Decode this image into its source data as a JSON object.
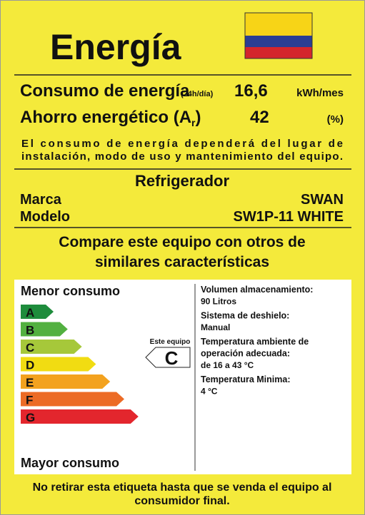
{
  "header": {
    "title": "Energía"
  },
  "consumption": {
    "label": "Consumo de energía",
    "qualifier": "(24h/día)",
    "value": "16,6",
    "unit": "kWh/mes"
  },
  "savings": {
    "label": "Ahorro energético (A",
    "subscript": "r",
    "label_end": ")",
    "value": 42,
    "unit": "(%)"
  },
  "note": [
    "El consumo de energía dependerá del lugar de",
    "instalación, modo de uso y mantenimiento del equipo."
  ],
  "product": {
    "type": "Refrigerador",
    "brand_label": "Marca",
    "brand": "SWAN",
    "model_label": "Modelo",
    "model": "SW1P-11 WHITE"
  },
  "compare": [
    "Compare este equipo con otros de",
    "similares características"
  ],
  "scale": {
    "top_label": "Menor consumo",
    "bottom_label": "Mayor consumo",
    "classes": [
      {
        "letter": "A",
        "color": "#1e8c3c"
      },
      {
        "letter": "B",
        "color": "#52b040"
      },
      {
        "letter": "C",
        "color": "#a6c83a"
      },
      {
        "letter": "D",
        "color": "#f1dc12"
      },
      {
        "letter": "E",
        "color": "#f3a21f"
      },
      {
        "letter": "F",
        "color": "#ec6b25"
      },
      {
        "letter": "G",
        "color": "#e3262d"
      }
    ]
  },
  "indicator": {
    "caption": "Este equipo",
    "class": "C"
  },
  "specs": [
    {
      "label": [
        "Volumen almacenamiento:"
      ],
      "value": "90 Litros"
    },
    {
      "label": [
        "Sistema de deshielo:"
      ],
      "value": "Manual"
    },
    {
      "label": [
        "Temperatura ambiente de",
        "operación adecuada:"
      ],
      "value": "de 16 a 43 °C"
    },
    {
      "label": [
        "Temperatura Minima:"
      ],
      "value": "4 °C"
    }
  ],
  "footer": [
    "No retirar esta etiqueta hasta que se venda el equipo al",
    "consumidor final."
  ]
}
